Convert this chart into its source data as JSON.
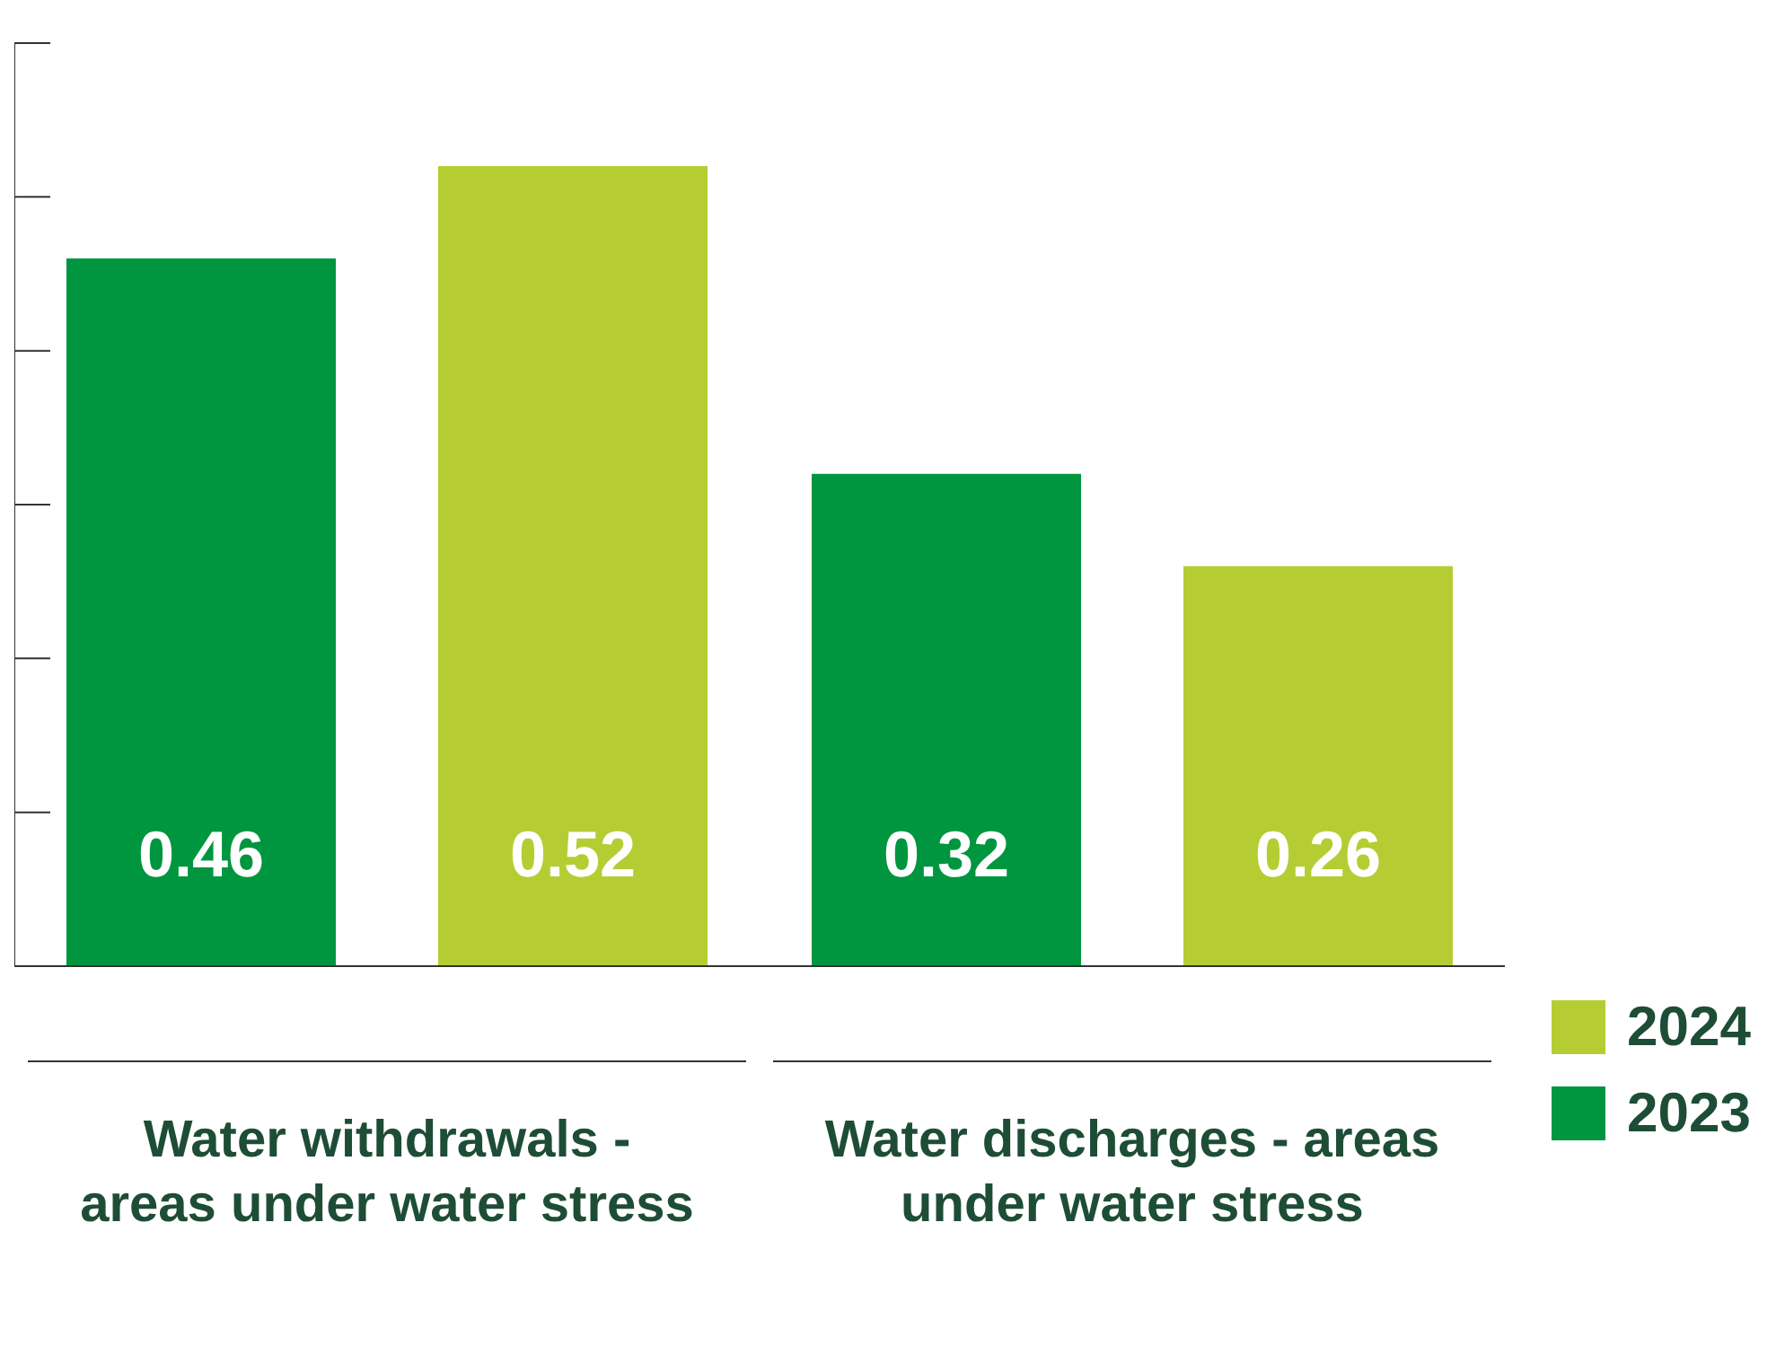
{
  "chart_data": {
    "type": "bar",
    "categories": [
      "Water withdrawals - areas under water stress",
      "Water discharges - areas under water stress"
    ],
    "series": [
      {
        "name": "2023",
        "color": "#00963f",
        "values": [
          0.46,
          0.32
        ]
      },
      {
        "name": "2024",
        "color": "#b5cd33",
        "values": [
          0.52,
          0.26
        ]
      }
    ],
    "ylim": [
      0,
      0.6
    ],
    "data_labels": true,
    "legend": "bottom right",
    "grid": false
  }
}
